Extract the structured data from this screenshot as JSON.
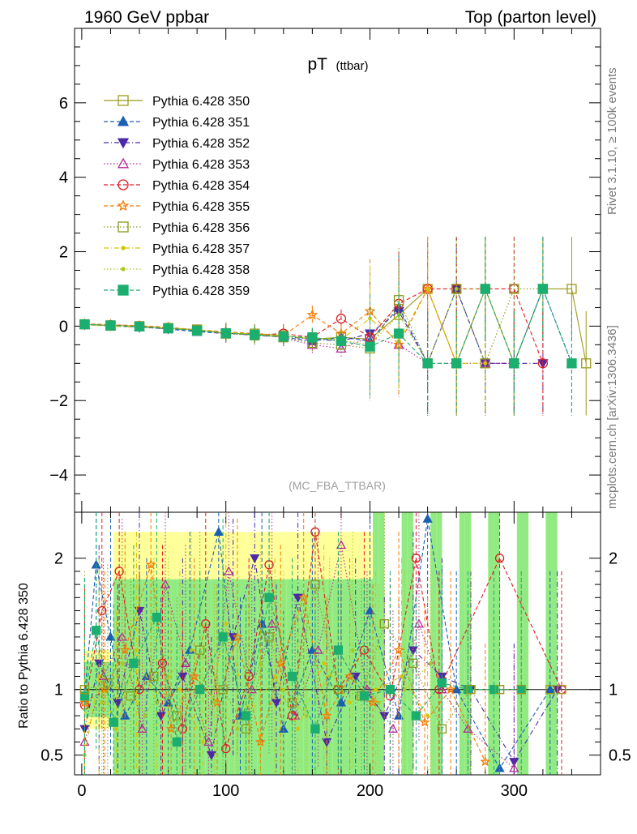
{
  "header": {
    "left": "1960 GeV ppbar",
    "right": "Top (parton level)"
  },
  "side_labels": {
    "rivet": "Rivet 3.1.10, ≥ 100k events",
    "mcplots": "mcplots.cern.ch [arXiv:1306.3436]"
  },
  "chart_data": [
    {
      "type": "line",
      "title": "pT",
      "title_sub": "(ttbar)",
      "annotation": "(MC_FBA_TTBAR)",
      "xlim": [
        -5,
        360
      ],
      "ylim": [
        -5,
        8
      ],
      "yticks": [
        -4,
        -2,
        0,
        2,
        4,
        6
      ],
      "ytick_labels": [
        "−4",
        "−2",
        "0",
        "2",
        "4",
        "6"
      ],
      "legend_position": "top-left",
      "series": [
        {
          "name": "Pythia 6.428 350",
          "color": "#9b9b1c",
          "marker": "square-open",
          "dash": "solid",
          "x": [
            2,
            20,
            40,
            60,
            80,
            100,
            120,
            140,
            160,
            180,
            200,
            220,
            240,
            260,
            280,
            300,
            320,
            340,
            350
          ],
          "y": [
            0.05,
            0.02,
            0.0,
            -0.05,
            -0.1,
            -0.2,
            -0.2,
            -0.25,
            -0.35,
            -0.3,
            -0.35,
            0.3,
            1.0,
            -1.0,
            1.0,
            -1.0,
            1.0,
            1.0,
            -1.0
          ]
        },
        {
          "name": "Pythia 6.428 351",
          "color": "#1a5fb4",
          "marker": "triangle-up",
          "dash": "dashed",
          "x": [
            2,
            20,
            40,
            60,
            80,
            100,
            120,
            140,
            160,
            180,
            200,
            220,
            240,
            260,
            280,
            300,
            320,
            340
          ],
          "y": [
            0.05,
            0.0,
            -0.02,
            -0.08,
            -0.15,
            -0.2,
            -0.22,
            -0.3,
            -0.4,
            -0.3,
            -0.4,
            0.5,
            -1.0,
            1.0,
            -1.0,
            -1.0,
            1.0,
            -1.0
          ]
        },
        {
          "name": "Pythia 6.428 352",
          "color": "#4b2aa8",
          "marker": "triangle-down",
          "dash": "dashdot",
          "x": [
            2,
            20,
            40,
            60,
            80,
            100,
            120,
            140,
            160,
            180,
            200,
            220,
            240,
            260,
            280,
            300,
            320
          ],
          "y": [
            0.04,
            0.01,
            -0.03,
            -0.07,
            -0.12,
            -0.18,
            -0.25,
            -0.28,
            -0.35,
            -0.4,
            -0.2,
            0.4,
            -1.0,
            1.0,
            -1.0,
            -1.0,
            -1.0
          ]
        },
        {
          "name": "Pythia 6.428 353",
          "color": "#b5279b",
          "marker": "triangle-open",
          "dash": "dotted",
          "x": [
            2,
            20,
            40,
            60,
            80,
            100,
            120,
            140,
            160,
            180,
            200,
            220,
            240,
            260,
            280,
            300
          ],
          "y": [
            0.03,
            0.02,
            -0.01,
            -0.06,
            -0.1,
            -0.22,
            -0.2,
            -0.32,
            -0.5,
            -0.6,
            -0.3,
            -0.5,
            -1.0,
            -1.0,
            -1.0,
            -1.0
          ]
        },
        {
          "name": "Pythia 6.428 354",
          "color": "#e01b24",
          "marker": "circle-open",
          "dash": "dashed",
          "x": [
            2,
            20,
            40,
            60,
            80,
            100,
            120,
            140,
            160,
            180,
            200,
            220,
            240,
            260,
            280,
            300,
            320
          ],
          "y": [
            0.05,
            0.03,
            0.0,
            -0.04,
            -0.12,
            -0.18,
            -0.24,
            -0.2,
            -0.3,
            0.2,
            -0.3,
            0.6,
            1.0,
            1.0,
            1.0,
            1.0,
            -1.0
          ]
        },
        {
          "name": "Pythia 6.428 355",
          "color": "#f57900",
          "marker": "star-open",
          "dash": "dashed",
          "x": [
            2,
            20,
            40,
            60,
            80,
            100,
            120,
            140,
            160,
            180,
            200,
            220,
            240,
            260,
            280,
            300
          ],
          "y": [
            0.06,
            0.04,
            0.01,
            -0.03,
            -0.1,
            -0.15,
            -0.2,
            -0.25,
            0.3,
            -0.2,
            0.4,
            -0.5,
            1.0,
            -1.0,
            1.0,
            -1.0
          ]
        },
        {
          "name": "Pythia 6.428 356",
          "color": "#8a9a1b",
          "marker": "square-open",
          "dash": "dotted",
          "x": [
            2,
            20,
            40,
            60,
            80,
            100,
            120,
            140,
            160,
            180,
            200,
            220,
            240,
            260,
            280,
            300,
            320
          ],
          "y": [
            0.05,
            0.01,
            -0.01,
            -0.05,
            -0.09,
            -0.2,
            -0.25,
            -0.3,
            -0.45,
            -0.5,
            -0.6,
            0.7,
            -1.0,
            1.0,
            -1.0,
            1.0,
            1.0
          ]
        },
        {
          "name": "Pythia 6.428 357",
          "color": "#d4c400",
          "marker": "small-dot",
          "dash": "dashdot",
          "x": [
            2,
            20,
            40,
            60,
            80,
            100,
            120,
            140,
            160,
            180,
            200,
            220,
            240,
            260,
            280
          ],
          "y": [
            0.04,
            0.0,
            -0.02,
            -0.06,
            -0.11,
            -0.17,
            -0.22,
            -0.27,
            -0.33,
            -0.35,
            0.2,
            -0.4,
            1.0,
            -1.0,
            -1.0
          ]
        },
        {
          "name": "Pythia 6.428 358",
          "color": "#a8c81e",
          "marker": "small-dot",
          "dash": "dotted",
          "x": [
            2,
            20,
            40,
            60,
            80,
            100,
            120,
            140,
            160,
            180,
            200,
            220,
            240,
            260,
            280,
            300
          ],
          "y": [
            0.03,
            0.01,
            -0.02,
            -0.05,
            -0.1,
            -0.16,
            -0.21,
            -0.26,
            -0.31,
            -0.38,
            -0.5,
            0.3,
            -1.0,
            1.0,
            1.0,
            -1.0
          ]
        },
        {
          "name": "Pythia 6.428 359",
          "color": "#1aae6f",
          "marker": "square-filled",
          "dash": "dashed",
          "x": [
            2,
            20,
            40,
            60,
            80,
            100,
            120,
            140,
            160,
            180,
            200,
            220,
            240,
            260,
            280,
            300,
            320,
            340
          ],
          "y": [
            0.05,
            0.02,
            -0.01,
            -0.06,
            -0.12,
            -0.19,
            -0.23,
            -0.28,
            -0.3,
            -0.4,
            -0.55,
            -0.2,
            -1.0,
            -1.0,
            1.0,
            -1.0,
            1.0,
            -1.0
          ]
        }
      ]
    },
    {
      "type": "line",
      "ylabel": "Ratio to Pythia 6.428 350",
      "xlim": [
        -5,
        360
      ],
      "ylim": [
        0.35,
        2.35
      ],
      "yticks": [
        0.5,
        1,
        2
      ],
      "ytick_labels": [
        "0.5",
        "1",
        "2"
      ],
      "xticks": [
        0,
        100,
        200,
        300
      ],
      "xtick_labels": [
        "0",
        "100",
        "200",
        "300"
      ],
      "reference_line": 1,
      "series": [
        {
          "name": "Pythia 6.428 351",
          "x": [
            2,
            10,
            20,
            30,
            45,
            60,
            75,
            95,
            110,
            125,
            140,
            160,
            180,
            200,
            220,
            240,
            260,
            290,
            325
          ],
          "y": [
            0.95,
            1.95,
            1.4,
            0.8,
            1.1,
            0.9,
            1.3,
            2.2,
            0.8,
            1.5,
            0.7,
            1.3,
            0.9,
            1.6,
            0.8,
            2.3,
            1.0,
            0.4,
            1.0
          ]
        },
        {
          "name": "Pythia 6.428 352",
          "x": [
            2,
            12,
            25,
            40,
            55,
            70,
            90,
            105,
            120,
            135,
            150,
            170,
            190,
            210,
            230,
            250,
            270,
            300,
            330
          ],
          "y": [
            0.7,
            1.2,
            0.9,
            1.6,
            0.8,
            1.1,
            0.5,
            1.4,
            2.0,
            0.9,
            1.7,
            0.6,
            1.1,
            0.8,
            1.3,
            1.1,
            1.0,
            0.45,
            1.0
          ]
        },
        {
          "name": "Pythia 6.428 353",
          "x": [
            2,
            15,
            28,
            42,
            58,
            72,
            88,
            102,
            118,
            132,
            148,
            164,
            180,
            198,
            216,
            234,
            250,
            268,
            300
          ],
          "y": [
            0.6,
            1.1,
            1.4,
            0.7,
            1.8,
            1.2,
            0.6,
            1.9,
            1.0,
            1.5,
            0.8,
            1.3,
            2.1,
            1.0,
            0.7,
            1.5,
            1.0,
            0.7,
            0.4
          ]
        },
        {
          "name": "Pythia 6.428 354",
          "x": [
            2,
            14,
            26,
            40,
            56,
            70,
            86,
            100,
            116,
            130,
            146,
            162,
            178,
            196,
            214,
            232,
            248,
            290,
            333
          ],
          "y": [
            0.88,
            1.6,
            1.9,
            1.0,
            1.2,
            0.7,
            1.5,
            0.55,
            1.1,
            1.95,
            0.8,
            2.2,
            1.0,
            1.3,
            0.95,
            2.0,
            1.0,
            2.0,
            1.0
          ]
        },
        {
          "name": "Pythia 6.428 355",
          "x": [
            2,
            16,
            30,
            48,
            62,
            78,
            94,
            108,
            124,
            138,
            154,
            170,
            186,
            202,
            220,
            238,
            256,
            280
          ],
          "y": [
            0.9,
            1.0,
            1.3,
            1.95,
            0.7,
            1.1,
            0.9,
            1.4,
            0.6,
            1.2,
            1.7,
            0.8,
            1.1,
            0.9,
            1.3,
            0.75,
            1.0,
            0.45
          ]
        },
        {
          "name": "Pythia 6.428 356",
          "x": [
            2,
            18,
            34,
            50,
            66,
            82,
            98,
            114,
            130,
            146,
            162,
            178,
            194,
            210,
            230,
            250,
            270,
            290,
            305
          ],
          "y": [
            1.0,
            1.05,
            0.95,
            1.1,
            0.8,
            1.3,
            1.0,
            0.7,
            1.4,
            0.9,
            1.8,
            1.0,
            0.95,
            1.5,
            1.2,
            0.7,
            1.0,
            1.0,
            1.0
          ]
        },
        {
          "name": "Pythia 6.428 357",
          "x": [
            2,
            12,
            24,
            38,
            52,
            68,
            84,
            100,
            116,
            134,
            150,
            168,
            186,
            204,
            222,
            240
          ],
          "y": [
            0.5,
            1.1,
            0.7,
            1.3,
            0.9,
            1.0,
            0.6,
            1.5,
            0.8,
            1.1,
            0.7,
            1.2,
            0.9,
            1.0,
            1.1,
            0.8
          ]
        },
        {
          "name": "Pythia 6.428 358",
          "x": [
            2,
            14,
            28,
            44,
            60,
            76,
            92,
            108,
            124,
            140,
            156,
            172,
            188,
            206,
            224,
            242
          ],
          "y": [
            0.85,
            0.9,
            1.2,
            0.8,
            1.1,
            1.3,
            0.9,
            0.7,
            1.2,
            1.0,
            0.8,
            1.1,
            1.3,
            0.9,
            1.0,
            1.2
          ]
        },
        {
          "name": "Pythia 6.428 359",
          "x": [
            2,
            10,
            22,
            36,
            52,
            66,
            82,
            98,
            114,
            130,
            146,
            162,
            178,
            196,
            214,
            232,
            250,
            268,
            286,
            305
          ],
          "y": [
            0.95,
            1.45,
            0.75,
            1.2,
            1.55,
            0.6,
            1.0,
            1.4,
            0.8,
            1.7,
            1.1,
            0.7,
            1.3,
            0.95,
            1.0,
            0.8,
            1.05,
            1.0,
            1.0,
            1.0
          ]
        }
      ]
    }
  ]
}
